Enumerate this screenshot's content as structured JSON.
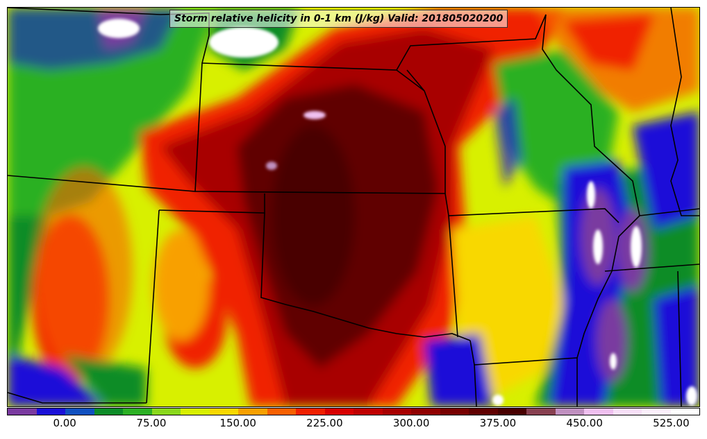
{
  "title": "Storm relative helicity in 0-1 km (J/kg) Valid: 201805020200",
  "colorbar": {
    "colors": [
      "#7a3aa0",
      "#1a10d8",
      "#1050c0",
      "#0c8c28",
      "#2cb024",
      "#8ad81c",
      "#d8f000",
      "#f8d800",
      "#f8a000",
      "#f86000",
      "#f02000",
      "#d80000",
      "#c00000",
      "#a80000",
      "#900000",
      "#780000",
      "#600000",
      "#480000",
      "#884050",
      "#c090c0",
      "#f0c0f0",
      "#f8e0f8",
      "#fcf0fc",
      "#ffffff"
    ],
    "ticks": [
      "0.00",
      "75.00",
      "150.00",
      "225.00",
      "300.00",
      "375.00",
      "450.00",
      "525.00"
    ],
    "tick_values": [
      0,
      75,
      150,
      225,
      300,
      375,
      450,
      525
    ],
    "min": -50,
    "max": 550
  },
  "map": {
    "background_color": "#d8f000",
    "field_regions": [
      {
        "name": "west-green",
        "color": "#2cb024"
      },
      {
        "name": "northwest-blue",
        "color": "#1a10d8"
      },
      {
        "name": "southwest-red",
        "color": "#f02000"
      },
      {
        "name": "central-darkred",
        "color": "#600000"
      },
      {
        "name": "central-maroon",
        "color": "#900000"
      },
      {
        "name": "east-green",
        "color": "#0c8c28"
      },
      {
        "name": "southeast-blue",
        "color": "#1a10d8"
      },
      {
        "name": "southeast-purple",
        "color": "#7a3aa0"
      },
      {
        "name": "north-white",
        "color": "#ffffff"
      }
    ]
  }
}
